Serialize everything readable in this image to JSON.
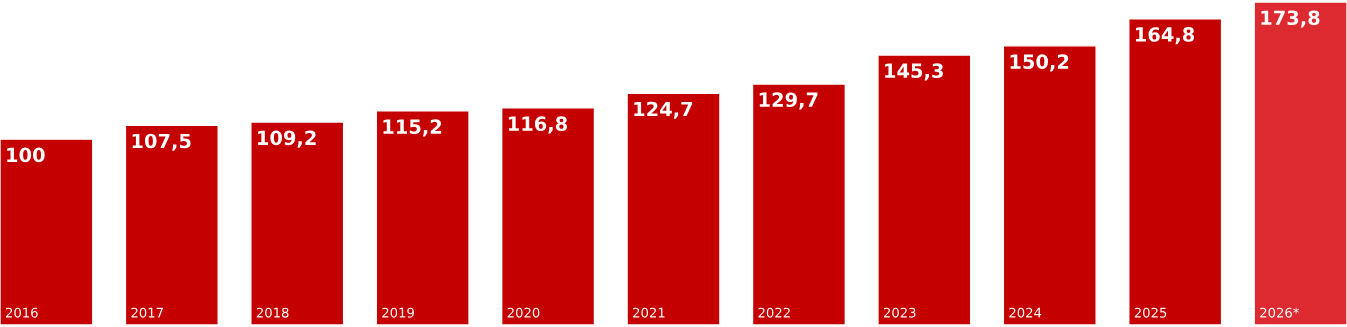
{
  "chart_data": {
    "type": "bar",
    "categories": [
      "2016",
      "2017",
      "2018",
      "2019",
      "2020",
      "2021",
      "2022",
      "2023",
      "2024",
      "2025",
      "2026*"
    ],
    "values": [
      100,
      107.5,
      109.2,
      115.2,
      116.8,
      124.7,
      129.7,
      145.3,
      150.2,
      164.8,
      173.8
    ],
    "value_labels": [
      "100",
      "107,5",
      "109,2",
      "115,2",
      "116,8",
      "124,7",
      "129,7",
      "145,3",
      "150,2",
      "164,8",
      "173,8"
    ],
    "colors": [
      "#c40000",
      "#c40000",
      "#c40000",
      "#c40000",
      "#c40000",
      "#c40000",
      "#c40000",
      "#c40000",
      "#c40000",
      "#c40000",
      "#dc2a30"
    ]
  }
}
